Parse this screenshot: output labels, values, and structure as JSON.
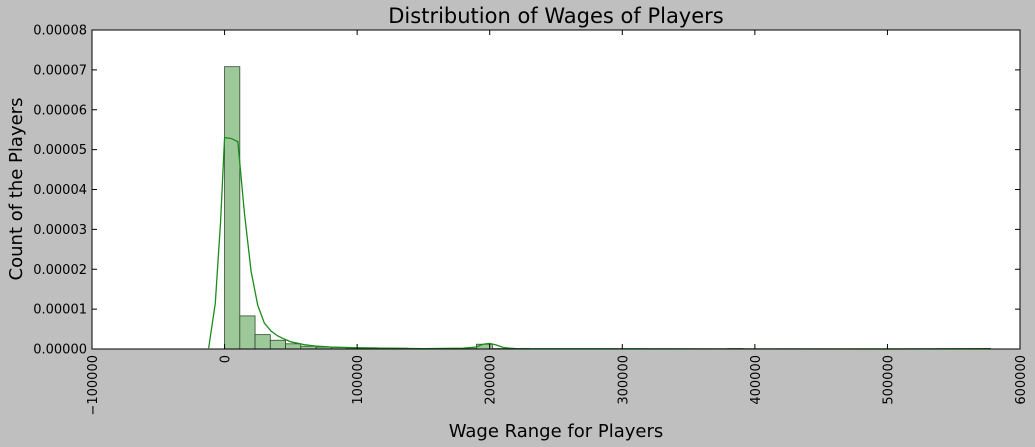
{
  "chart_data": {
    "type": "bar",
    "title": "Distribution of Wages of Players",
    "xlabel": "Wage Range for Players",
    "ylabel": "Count of the Players",
    "xlim": [
      -100000,
      600000
    ],
    "ylim": [
      0,
      8e-05
    ],
    "x_ticks": [
      -100000,
      0,
      100000,
      200000,
      300000,
      400000,
      500000,
      600000
    ],
    "x_tick_labels": [
      "−100000",
      "0",
      "100000",
      "200000",
      "300000",
      "400000",
      "500000",
      "600000"
    ],
    "y_ticks": [
      0,
      1e-05,
      2e-05,
      3e-05,
      4e-05,
      5e-05,
      6e-05,
      7e-05,
      8e-05
    ],
    "y_tick_labels": [
      "0.00000",
      "0.00001",
      "0.00002",
      "0.00003",
      "0.00004",
      "0.00005",
      "0.00006",
      "0.00007",
      "0.00008"
    ],
    "grid": false,
    "histogram": {
      "bin_start": 0,
      "bin_width": 11500,
      "values": [
        7.08e-05,
        8.3e-06,
        3.6e-06,
        2.2e-06,
        1.3e-06,
        7e-07,
        5e-07,
        4e-07,
        3e-07,
        3e-07,
        2e-07,
        2e-07,
        1e-07,
        1e-07,
        1e-07,
        1e-07,
        1e-07,
        1e-07,
        1e-07,
        1e-07,
        0,
        0,
        0,
        0,
        0,
        0,
        0,
        0,
        0,
        0,
        0,
        0,
        0,
        1e-07,
        0,
        0,
        0,
        0,
        0,
        0,
        0,
        0,
        0,
        0,
        0,
        0,
        0,
        0,
        0,
        0
      ],
      "extra_bars": [
        {
          "x0": 190000,
          "x1": 202000,
          "value": 1.2e-06
        }
      ],
      "fill_color": "#9dc99a",
      "edge_color": "#2f4a2f"
    },
    "kde": {
      "color": "#1a8c1a",
      "x": [
        -12000,
        -7000,
        -3000,
        0,
        5000,
        10000,
        15000,
        20000,
        25000,
        30000,
        35000,
        40000,
        45000,
        50000,
        60000,
        70000,
        80000,
        100000,
        120000,
        150000,
        180000,
        190000,
        195000,
        200000,
        205000,
        210000,
        215000,
        220000,
        300000,
        400000,
        500000,
        578000
      ],
      "y": [
        2e-07,
        1.15e-05,
        3.2e-05,
        5.3e-05,
        5.28e-05,
        5.2e-05,
        3.4e-05,
        1.95e-05,
        1.1e-05,
        6.5e-06,
        4.5e-06,
        3.3e-06,
        2.5e-06,
        1.8e-06,
        1.1e-06,
        7e-07,
        5e-07,
        3e-07,
        2e-07,
        1e-07,
        2e-07,
        5e-07,
        1.2e-06,
        1.4e-06,
        1e-06,
        4e-07,
        2e-07,
        1e-07,
        5e-08,
        3e-08,
        2e-08,
        1e-07
      ]
    }
  }
}
